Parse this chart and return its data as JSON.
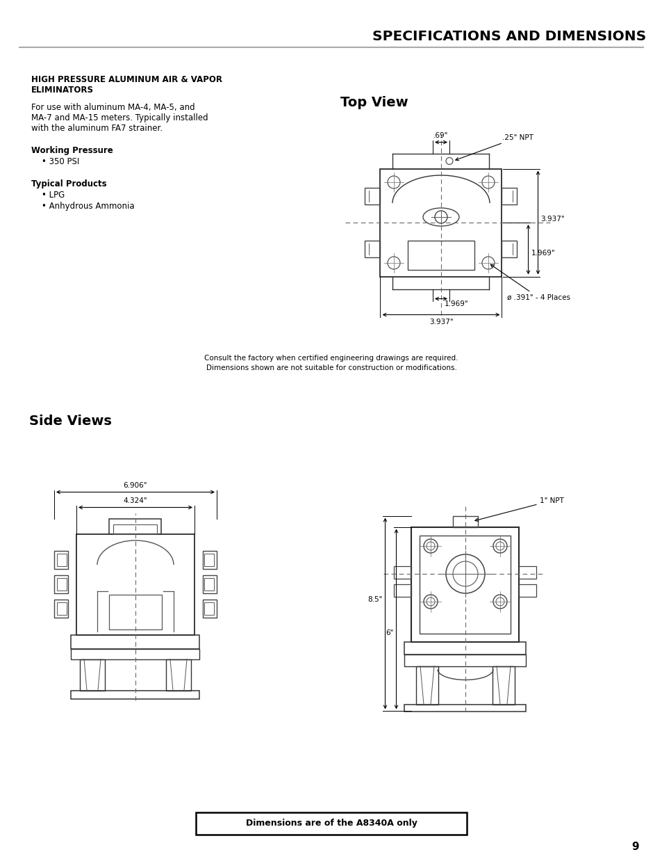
{
  "title": "SPECIFICATIONS AND DIMENSIONS",
  "page_number": "9",
  "section_heading_line1": "HIGH PRESSURE ALUMINUM AIR & VAPOR",
  "section_heading_line2": "ELIMINATORS",
  "intro_text_line1": "For use with aluminum MA-4, MA-5, and",
  "intro_text_line2": "MA-7 and MA-15 meters. Typically installed",
  "intro_text_line3": "with the aluminum FA7 strainer.",
  "working_pressure_label": "Working Pressure",
  "working_pressure_value": "• 350 PSI",
  "typical_products_label": "Typical Products",
  "typical_products_values": [
    "• LPG",
    "• Anhydrous Ammonia"
  ],
  "top_view_title_part1": "T",
  "top_view_title_part2": "OP ",
  "top_view_title_part3": "V",
  "top_view_title_part4": "IEW",
  "side_views_title_part1": "S",
  "side_views_title_part2": "IDE ",
  "side_views_title_part3": "V",
  "side_views_title_part4": "IEWS",
  "note_line1": "Consult the factory when certified engineering drawings are required.",
  "note_line2": "Dimensions shown are not suitable for construction or modifications.",
  "dimensions_note": "Dimensions are of the A8340A only",
  "bg_color": "#ffffff",
  "line_color": "#000000"
}
